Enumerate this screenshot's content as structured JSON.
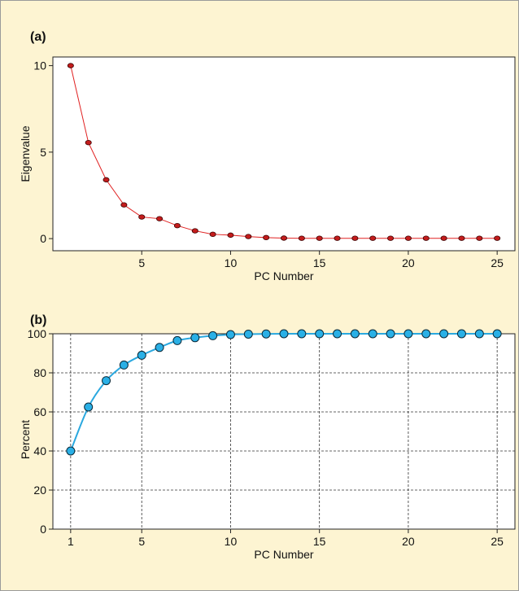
{
  "chart_data": [
    {
      "panel_label": "(a)",
      "type": "line",
      "xlabel": "PC Number",
      "ylabel": "Eigenvalue",
      "xlim": [
        0,
        26
      ],
      "ylim": [
        -0.7,
        10.5
      ],
      "xticks": [
        5,
        10,
        15,
        20,
        25
      ],
      "yticks": [
        0,
        5,
        10
      ],
      "grid": false,
      "line_color": "#e02020",
      "marker_color": "#c41c1c",
      "x": [
        1,
        2,
        3,
        4,
        5,
        6,
        7,
        8,
        9,
        10,
        11,
        12,
        13,
        14,
        15,
        16,
        17,
        18,
        19,
        20,
        21,
        22,
        23,
        24,
        25
      ],
      "series": [
        {
          "values": [
            10.0,
            5.55,
            3.4,
            1.95,
            1.25,
            1.15,
            0.75,
            0.45,
            0.25,
            0.2,
            0.12,
            0.06,
            0.03,
            0.02,
            0.02,
            0.02,
            0.02,
            0.02,
            0.02,
            0.02,
            0.02,
            0.02,
            0.02,
            0.02,
            0.02
          ]
        }
      ]
    },
    {
      "panel_label": "(b)",
      "type": "line",
      "xlabel": "PC Number",
      "ylabel": "Percent",
      "xlim": [
        0,
        26
      ],
      "ylim": [
        0,
        100
      ],
      "xticks": [
        1,
        5,
        10,
        15,
        20,
        25
      ],
      "yticks": [
        0,
        20,
        40,
        60,
        80,
        100
      ],
      "grid": true,
      "line_color": "#2aa8df",
      "marker_color": "#2ab0e6",
      "x": [
        1,
        2,
        3,
        4,
        5,
        6,
        7,
        8,
        9,
        10,
        11,
        12,
        13,
        14,
        15,
        16,
        17,
        18,
        19,
        20,
        21,
        22,
        23,
        24,
        25
      ],
      "series": [
        {
          "values": [
            40,
            62.5,
            76,
            84,
            89,
            93,
            96.5,
            98,
            99,
            99.6,
            99.8,
            99.9,
            100,
            100,
            100,
            100,
            100,
            100,
            100,
            100,
            100,
            100,
            100,
            100,
            100
          ]
        }
      ]
    }
  ]
}
